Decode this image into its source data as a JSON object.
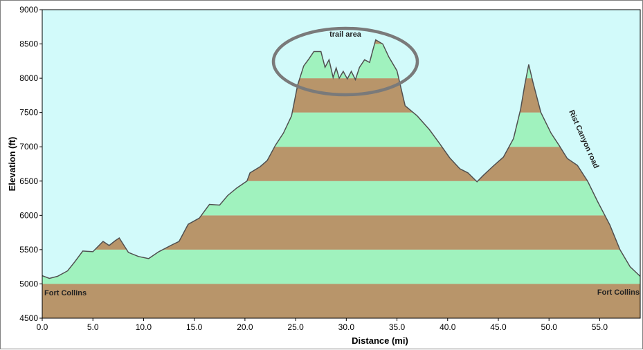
{
  "chart_data": {
    "type": "area",
    "xlabel": "Distance   (mi)",
    "ylabel": "Elevation (ft)",
    "xlim": [
      0,
      59
    ],
    "ylim": [
      4500,
      9000
    ],
    "xticks": [
      "0.0",
      "5.0",
      "10.0",
      "15.0",
      "20.0",
      "25.0",
      "30.0",
      "35.0",
      "40.0",
      "45.0",
      "50.0",
      "55.0"
    ],
    "yticks": [
      "4500",
      "5000",
      "5500",
      "6000",
      "6500",
      "7000",
      "7500",
      "8000",
      "8500",
      "9000"
    ],
    "grid": false,
    "colors": {
      "sky": "#d2fafa",
      "band_dark": "#b8956a",
      "band_light": "#a0f2be",
      "profile_line": "#505050",
      "ellipse": "#7a7a7a"
    },
    "band_step_ft": 500,
    "profile": [
      [
        0,
        5120
      ],
      [
        0.7,
        5080
      ],
      [
        1.5,
        5110
      ],
      [
        2.5,
        5190
      ],
      [
        3.2,
        5320
      ],
      [
        4.0,
        5480
      ],
      [
        5.0,
        5470
      ],
      [
        5.4,
        5530
      ],
      [
        6.0,
        5620
      ],
      [
        6.6,
        5560
      ],
      [
        7.2,
        5630
      ],
      [
        7.6,
        5670
      ],
      [
        8.5,
        5460
      ],
      [
        9.5,
        5400
      ],
      [
        10.5,
        5370
      ],
      [
        11.5,
        5470
      ],
      [
        12.8,
        5570
      ],
      [
        13.5,
        5620
      ],
      [
        14.4,
        5870
      ],
      [
        15.5,
        5960
      ],
      [
        16.5,
        6160
      ],
      [
        17.5,
        6150
      ],
      [
        18.3,
        6290
      ],
      [
        19.2,
        6400
      ],
      [
        20.2,
        6500
      ],
      [
        20.5,
        6620
      ],
      [
        21.5,
        6710
      ],
      [
        22.2,
        6800
      ],
      [
        23.0,
        7020
      ],
      [
        23.8,
        7200
      ],
      [
        24.6,
        7450
      ],
      [
        25.2,
        7900
      ],
      [
        25.8,
        8180
      ],
      [
        26.3,
        8280
      ],
      [
        26.8,
        8390
      ],
      [
        27.5,
        8390
      ],
      [
        27.9,
        8160
      ],
      [
        28.3,
        8270
      ],
      [
        28.7,
        8010
      ],
      [
        29.0,
        8150
      ],
      [
        29.3,
        8000
      ],
      [
        29.7,
        8100
      ],
      [
        30.1,
        7990
      ],
      [
        30.5,
        8100
      ],
      [
        30.9,
        7980
      ],
      [
        31.3,
        8160
      ],
      [
        31.8,
        8270
      ],
      [
        32.3,
        8230
      ],
      [
        32.6,
        8400
      ],
      [
        32.9,
        8560
      ],
      [
        33.6,
        8500
      ],
      [
        34.2,
        8310
      ],
      [
        35.0,
        8110
      ],
      [
        35.8,
        7600
      ],
      [
        37.0,
        7450
      ],
      [
        38.2,
        7250
      ],
      [
        39.2,
        7050
      ],
      [
        40.2,
        6840
      ],
      [
        41.2,
        6680
      ],
      [
        42.0,
        6620
      ],
      [
        42.9,
        6490
      ],
      [
        43.5,
        6580
      ],
      [
        44.5,
        6720
      ],
      [
        45.5,
        6850
      ],
      [
        46.5,
        7120
      ],
      [
        47.2,
        7550
      ],
      [
        47.6,
        7900
      ],
      [
        48.0,
        8200
      ],
      [
        48.4,
        7950
      ],
      [
        49.2,
        7500
      ],
      [
        50.2,
        7200
      ],
      [
        51.0,
        7020
      ],
      [
        51.8,
        6830
      ],
      [
        52.8,
        6730
      ],
      [
        53.8,
        6500
      ],
      [
        54.8,
        6200
      ],
      [
        56.0,
        5860
      ],
      [
        57.0,
        5500
      ],
      [
        58.0,
        5250
      ],
      [
        59.0,
        5110
      ]
    ],
    "annotations": {
      "trail_area": "trail area",
      "rist_canyon": "Rist Canyon road",
      "start": "Fort Collins",
      "end": "Fort Collins"
    }
  }
}
